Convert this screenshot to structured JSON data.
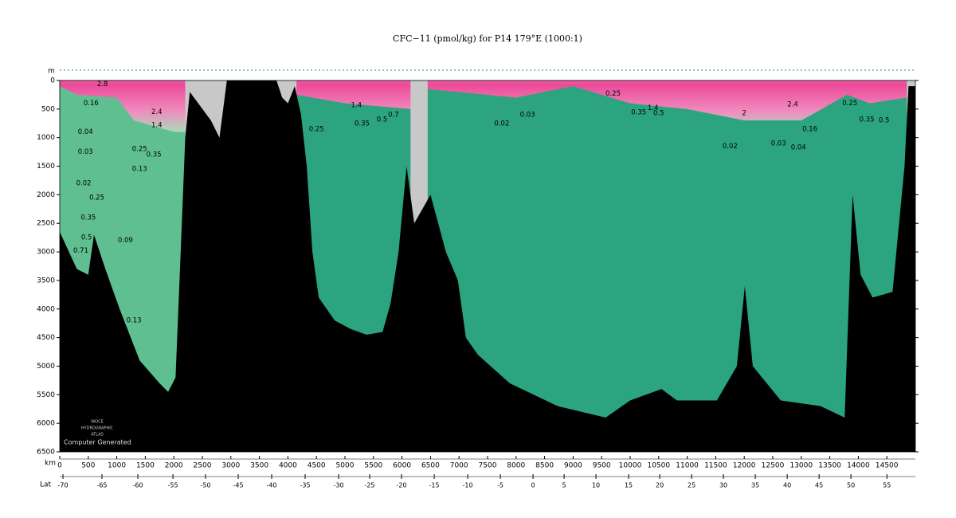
{
  "chart_data": {
    "type": "section",
    "title": "CFC−11 (pmol/kg) for P14 179°E (1000:1)",
    "y_label": "m",
    "x_label": "km",
    "x2_label": "Lat",
    "watermark": [
      "WOCE",
      "HYDROGRAPHIC",
      "ATLAS"
    ],
    "credit": "Computer Generated",
    "xlim": [
      0,
      15000
    ],
    "ylim": [
      0,
      6500
    ],
    "xticks": [
      0,
      500,
      1000,
      1500,
      2000,
      2500,
      3000,
      3500,
      4000,
      4500,
      5000,
      5500,
      6000,
      6500,
      7000,
      7500,
      8000,
      8500,
      9000,
      9500,
      10000,
      10500,
      11000,
      11500,
      12000,
      12500,
      13000,
      13500,
      14000,
      14500
    ],
    "yticks": [
      0,
      500,
      1000,
      1500,
      2000,
      2500,
      3000,
      3500,
      4000,
      4500,
      5000,
      5500,
      6000,
      6500
    ],
    "x2ticks": [
      {
        "value": 56,
        "label": "-70"
      },
      {
        "value": 740,
        "label": "-65"
      },
      {
        "value": 1369,
        "label": "-60"
      },
      {
        "value": 1984,
        "label": "-55"
      },
      {
        "value": 2556,
        "label": "-50"
      },
      {
        "value": 3129,
        "label": "-45"
      },
      {
        "value": 3715,
        "label": "-40"
      },
      {
        "value": 4302,
        "label": "-35"
      },
      {
        "value": 4889,
        "label": "-30"
      },
      {
        "value": 5433,
        "label": "-25"
      },
      {
        "value": 5992,
        "label": "-20"
      },
      {
        "value": 6565,
        "label": "-15"
      },
      {
        "value": 7152,
        "label": "-10"
      },
      {
        "value": 7724,
        "label": "-5"
      },
      {
        "value": 8297,
        "label": "0"
      },
      {
        "value": 8842,
        "label": "5"
      },
      {
        "value": 9400,
        "label": "10"
      },
      {
        "value": 9973,
        "label": "15"
      },
      {
        "value": 10518,
        "label": "20"
      },
      {
        "value": 11077,
        "label": "25"
      },
      {
        "value": 11635,
        "label": "30"
      },
      {
        "value": 12194,
        "label": "35"
      },
      {
        "value": 12753,
        "label": "40"
      },
      {
        "value": 13312,
        "label": "45"
      },
      {
        "value": 13870,
        "label": "50"
      },
      {
        "value": 14501,
        "label": "55"
      }
    ],
    "water_color": "#2ba47f",
    "south_water_color": "#5fbf91",
    "surface_color": "#ee5fa3",
    "bottom_color": "#000000",
    "no_data_color": "#c8c8c8",
    "no_data": [
      [
        2200,
        4150
      ],
      [
        6150,
        6450
      ],
      [
        14850,
        15000
      ]
    ],
    "south_region": [
      0,
      2200
    ],
    "bottom_km": [
      0,
      300,
      500,
      600,
      800,
      1050,
      1400,
      1750,
      1900,
      2030,
      2100,
      2200,
      2280,
      2650,
      2800,
      2930,
      3800,
      3900,
      4000,
      4120,
      4230,
      4330,
      4430,
      4540,
      4820,
      5100,
      5380,
      5660,
      5800,
      5940,
      6080,
      6215,
      6500,
      6770,
      6980,
      7120,
      7330,
      7890,
      8730,
      9570,
      10000,
      10550,
      10820,
      11520,
      11870,
      12010,
      12150,
      12640,
      13340,
      13760,
      13900,
      14040,
      14250,
      14600,
      14810,
      14880,
      15000
    ],
    "bottom_depth": [
      2650,
      3300,
      3400,
      2700,
      3300,
      4000,
      4900,
      5300,
      5450,
      5200,
      3500,
      1000,
      200,
      700,
      1000,
      0,
      0,
      300,
      400,
      100,
      600,
      1500,
      3000,
      3800,
      4200,
      4350,
      4450,
      4400,
      3900,
      3000,
      1500,
      2500,
      2000,
      3000,
      3500,
      4500,
      4800,
      5300,
      5700,
      5900,
      5600,
      5400,
      5600,
      5600,
      5000,
      3600,
      5000,
      5600,
      5700,
      5900,
      2000,
      3400,
      3800,
      3700,
      1500,
      100,
      100
    ],
    "surface_km": [
      0,
      300,
      1000,
      1300,
      2000,
      2200,
      4150,
      5000,
      6150,
      6450,
      8000,
      9000,
      10000,
      11000,
      12000,
      13000,
      13800,
      14200,
      14850
    ],
    "surface_depth": [
      100,
      250,
      300,
      700,
      900,
      900,
      250,
      400,
      500,
      150,
      300,
      100,
      400,
      500,
      700,
      700,
      250,
      400,
      300
    ],
    "annotations": [
      {
        "text": 2.8,
        "x": 750,
        "y": 60
      },
      {
        "text": 2.4,
        "x": 1700,
        "y": 550
      },
      {
        "text": 1.4,
        "x": 1700,
        "y": 780
      },
      {
        "text": 0.16,
        "x": 550,
        "y": 400
      },
      {
        "text": 0.04,
        "x": 450,
        "y": 900
      },
      {
        "text": 0.03,
        "x": 450,
        "y": 1250
      },
      {
        "text": 0.02,
        "x": 420,
        "y": 1800
      },
      {
        "text": 0.25,
        "x": 650,
        "y": 2050
      },
      {
        "text": 0.35,
        "x": 500,
        "y": 2400
      },
      {
        "text": 0.5,
        "x": 470,
        "y": 2750
      },
      {
        "text": 0.71,
        "x": 370,
        "y": 2980
      },
      {
        "text": 0.13,
        "x": 1400,
        "y": 1550
      },
      {
        "text": 0.09,
        "x": 1150,
        "y": 2800
      },
      {
        "text": 0.13,
        "x": 1300,
        "y": 4200
      },
      {
        "text": 0.25,
        "x": 1400,
        "y": 1200
      },
      {
        "text": 0.35,
        "x": 1650,
        "y": 1300
      },
      {
        "text": 1.4,
        "x": 5200,
        "y": 430
      },
      {
        "text": 0.25,
        "x": 4500,
        "y": 850
      },
      {
        "text": 0.7,
        "x": 5850,
        "y": 600
      },
      {
        "text": 0.5,
        "x": 5650,
        "y": 680
      },
      {
        "text": 0.35,
        "x": 5300,
        "y": 750
      },
      {
        "text": 0.02,
        "x": 7750,
        "y": 750
      },
      {
        "text": 0.03,
        "x": 8200,
        "y": 600
      },
      {
        "text": 0.25,
        "x": 9700,
        "y": 230
      },
      {
        "text": 1.4,
        "x": 10400,
        "y": 480
      },
      {
        "text": 0.35,
        "x": 10150,
        "y": 560
      },
      {
        "text": 0.5,
        "x": 10500,
        "y": 570
      },
      {
        "text": 2.4,
        "x": 12850,
        "y": 420
      },
      {
        "text": 2,
        "x": 12000,
        "y": 570
      },
      {
        "text": 0.25,
        "x": 13850,
        "y": 400
      },
      {
        "text": 0.35,
        "x": 14150,
        "y": 680
      },
      {
        "text": 0.5,
        "x": 14450,
        "y": 700
      },
      {
        "text": 0.16,
        "x": 13150,
        "y": 850
      },
      {
        "text": 0.02,
        "x": 11750,
        "y": 1150
      },
      {
        "text": 0.03,
        "x": 12600,
        "y": 1100
      },
      {
        "text": 0.04,
        "x": 12950,
        "y": 1170
      }
    ]
  }
}
